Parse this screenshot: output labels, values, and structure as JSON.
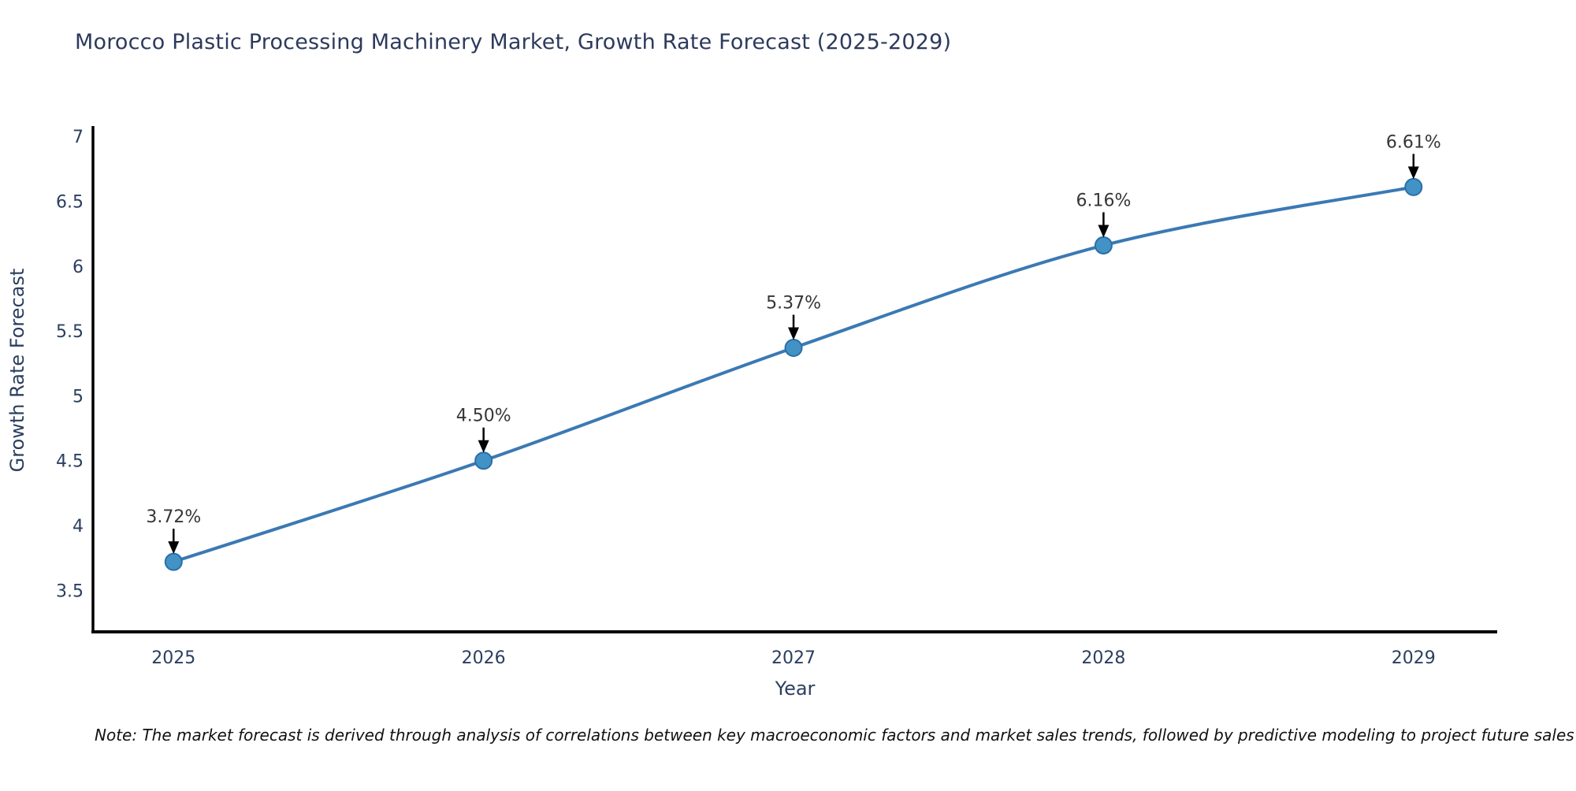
{
  "title": "Morocco Plastic Processing Machinery Market, Growth Rate Forecast (2025-2029)",
  "note": "Note: The market forecast is derived through analysis of correlations between key macroeconomic factors and market sales trends, followed by predictive modeling to project future sales",
  "chart_data": {
    "type": "line",
    "title": "Morocco Plastic Processing Machinery Market, Growth Rate Forecast (2025-2029)",
    "xlabel": "Year",
    "ylabel": "Growth Rate Forecast",
    "x": [
      2025,
      2026,
      2027,
      2028,
      2029
    ],
    "values": [
      3.72,
      4.5,
      5.37,
      6.16,
      6.61
    ],
    "point_labels": [
      "3.72%",
      "4.50%",
      "5.37%",
      "6.16%",
      "6.61%"
    ],
    "xticks": [
      2025,
      2026,
      2027,
      2028,
      2029
    ],
    "yticks": [
      3.5,
      4,
      4.5,
      5,
      5.5,
      6,
      6.5,
      7
    ],
    "xlim": [
      2024.74,
      2029.27
    ],
    "ylim": [
      3.18,
      7.08
    ],
    "grid": false,
    "legend": false,
    "colors": {
      "line": "#3b79b3",
      "marker_fill": "#4292c6",
      "marker_edge": "#2a6fa8",
      "axis_spine": "#000000",
      "tick_text": "#2a3f5f",
      "axis_title_text": "#2a3f5f",
      "title_text": "#2d3a5c",
      "annotation_text": "#363636",
      "arrow": "#000000"
    }
  }
}
